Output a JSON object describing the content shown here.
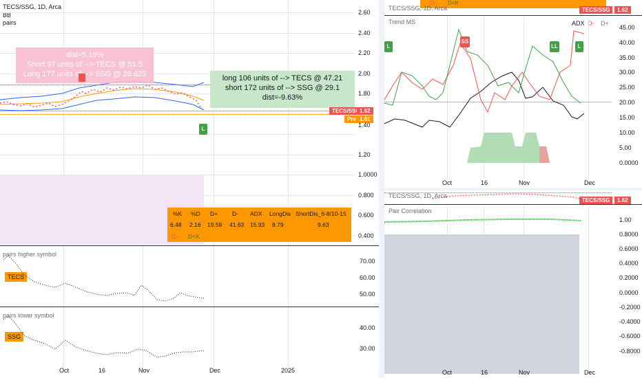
{
  "left_chart": {
    "title": "TECS/SSG, 1D, Arca",
    "ind1": "BB",
    "ind2": "pairs",
    "short_note": {
      "line1": "dist=5.19%",
      "line2": "Short 97 units of --> TECS @ 51.5",
      "line3": "Long 177 units of --> SSG @ 28.625"
    },
    "long_note": {
      "line1": "long 106 units of --> TECS @ 47.21",
      "line2": "short 172 units of --> SSG @ 29.1",
      "line3": "dist=-9.63%"
    },
    "marker_L": "L",
    "price_tag": {
      "symbol": "TECS/SSG",
      "value": "1.62"
    },
    "pre_tag": {
      "label": "Pre",
      "value": "1.61"
    },
    "y_axis": [
      "2.60",
      "2.40",
      "2.20",
      "2.00",
      "1.80",
      "1.60",
      "1.40",
      "1.20",
      "1.0000",
      "0.800",
      "0.600",
      "0.400"
    ],
    "table": {
      "headers": [
        "%K",
        "%D",
        "D+",
        "D-",
        "ADX",
        "LongDis",
        "ShortDis_6-8/10-15"
      ],
      "values": [
        "6.48",
        "2.16",
        "19.59",
        "41.63",
        "15.93",
        "8.79",
        "9.63"
      ],
      "legend": [
        "D--",
        "D<K"
      ]
    },
    "higher": {
      "label": "pairs higher symbol",
      "tag": "TECS",
      "y_axis": [
        "70.00",
        "60.00",
        "50.00"
      ]
    },
    "lower": {
      "label": "pairs lower symbol",
      "tag": "SSG",
      "y_axis": [
        "40.00",
        "30.00"
      ]
    },
    "x_axis": [
      "Oct",
      "16",
      "Nov",
      "Dec",
      "2025"
    ]
  },
  "right_top": {
    "title": "TECS/SSG, 1D, Arca",
    "price_tag": {
      "symbol": "TECS/SSG",
      "value": "1.62"
    },
    "legend_top": [
      "D--",
      "D<K"
    ],
    "panel_title": "Trend MS",
    "legend": [
      "ADX",
      "D-",
      "D+"
    ],
    "markers": {
      "L1": "L",
      "SS": "SS",
      "LL": "LL",
      "L2": "L"
    },
    "y_axis": [
      "45.00",
      "40.00",
      "35.00",
      "30.00",
      "25.00",
      "20.00",
      "15.00",
      "10.00",
      "5.00",
      "0.0000"
    ],
    "x_axis": [
      "Oct",
      "16",
      "Nov",
      "Dec"
    ],
    "colors": {
      "adx": "#131722",
      "dminus": "#ef5350",
      "dplus": "#43a047"
    }
  },
  "right_bottom": {
    "title": "TECS/SSG, 1D, Arca",
    "price_tag": {
      "symbol": "TECS/SSG",
      "value": "1.62"
    },
    "panel_title": "Pair Correlation",
    "y_axis": [
      "1.00",
      "0.8000",
      "0.6000",
      "0.4000",
      "0.2000",
      "0.0000",
      "-0.2000",
      "-0.4000",
      "-0.6000",
      "-0.8000"
    ],
    "x_axis": [
      "Oct",
      "16",
      "Nov",
      "Dec"
    ]
  }
}
